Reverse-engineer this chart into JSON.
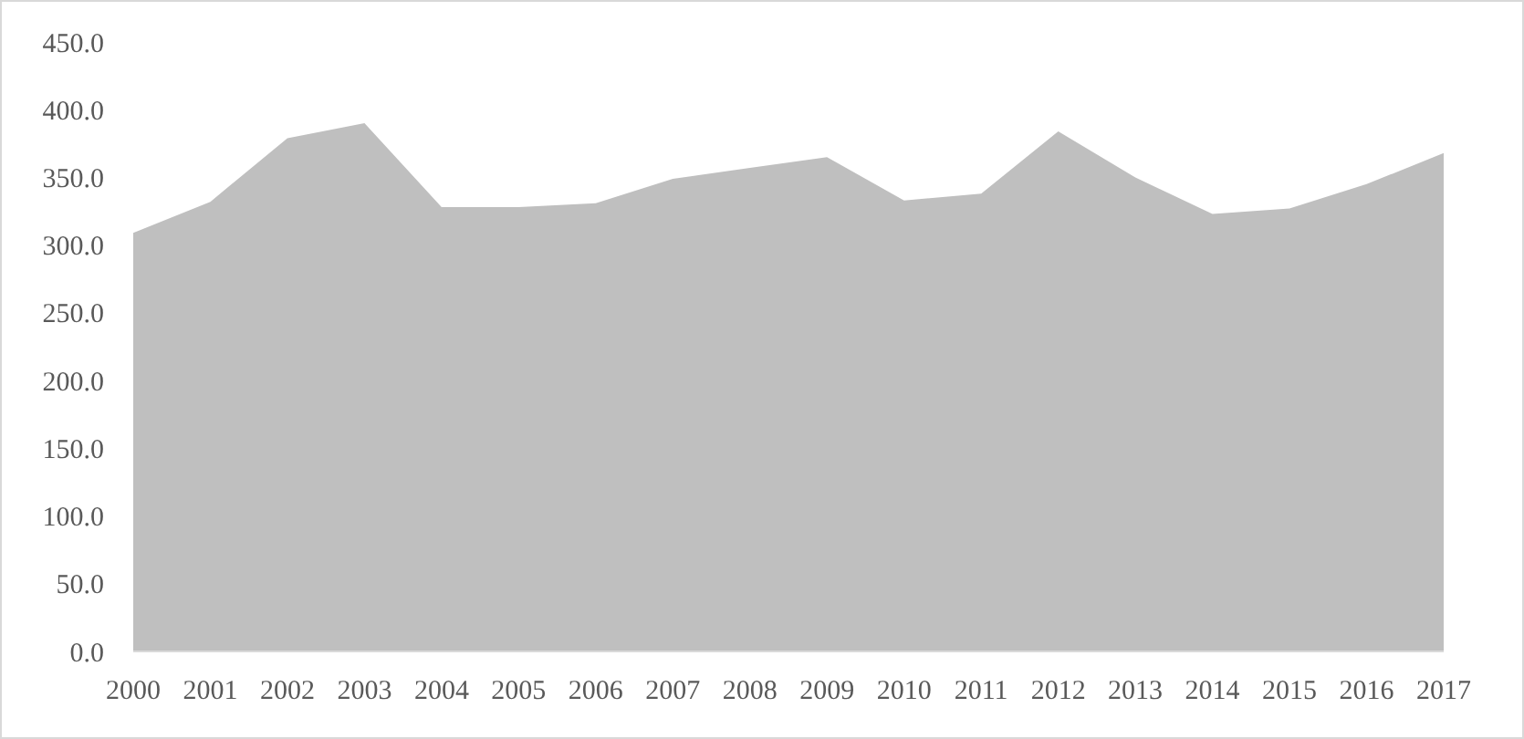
{
  "chart_data": {
    "type": "area",
    "categories": [
      "2000",
      "2001",
      "2002",
      "2003",
      "2004",
      "2005",
      "2006",
      "2007",
      "2008",
      "2009",
      "2010",
      "2011",
      "2012",
      "2013",
      "2014",
      "2015",
      "2016",
      "2017"
    ],
    "series": [
      {
        "color": "#bfbfbf",
        "values": [
          309,
          332,
          379,
          390,
          328,
          328,
          331,
          349,
          357,
          365,
          333,
          338,
          384,
          350,
          323,
          327,
          345,
          368
        ]
      }
    ],
    "ylim": [
      0,
      450
    ],
    "yticks": [
      {
        "value": 0,
        "label": "0.0"
      },
      {
        "value": 50,
        "label": "50.0"
      },
      {
        "value": 100,
        "label": "100.0"
      },
      {
        "value": 150,
        "label": "150.0"
      },
      {
        "value": 200,
        "label": "200.0"
      },
      {
        "value": 250,
        "label": "250.0"
      },
      {
        "value": 300,
        "label": "300.0"
      },
      {
        "value": 350,
        "label": "350.0"
      },
      {
        "value": 400,
        "label": "400.0"
      },
      {
        "value": 450,
        "label": "450.0"
      }
    ]
  }
}
